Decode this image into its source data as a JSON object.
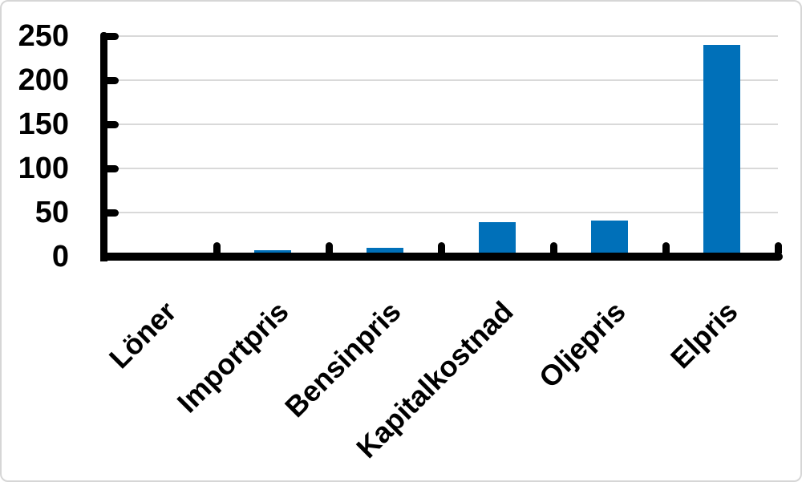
{
  "figure": {
    "background": "#FFFFFF",
    "border_color": "#D6D6D6"
  },
  "chart_data": {
    "type": "bar",
    "categories": [
      "Löner",
      "Importpris",
      "Bensinpris",
      "Kapitalkostnad",
      "Oljepris",
      "Elpris"
    ],
    "values": [
      0,
      7,
      10,
      39,
      41,
      240
    ],
    "title": "",
    "xlabel": "",
    "ylabel": "",
    "ylim": [
      0,
      250
    ],
    "yticks": [
      0,
      50,
      100,
      150,
      200,
      250
    ],
    "grid": "horizontal-major",
    "legend": "none",
    "x_label_rotation_deg": 45,
    "bar_color": "#0070B9",
    "gridline_color": "#D9D9D9",
    "axis_color": "#000000",
    "text_color": "#000000"
  }
}
